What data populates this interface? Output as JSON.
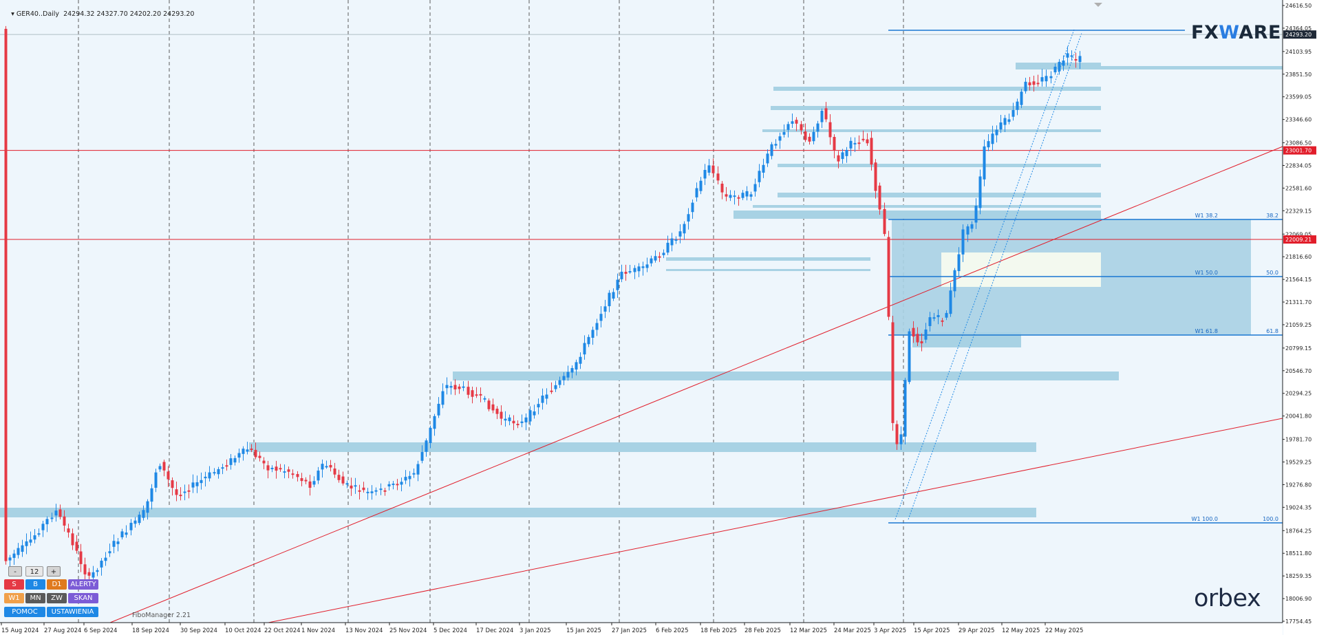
{
  "header": {
    "symbol": "GER40..Daily",
    "ohlc": "24294.32 24327.70 24202.20 24293.20"
  },
  "y_axis": {
    "ticks": [
      "24616.50",
      "24364.05",
      "24103.95",
      "23851.50",
      "23599.05",
      "23346.60",
      "23086.50",
      "22834.05",
      "22581.60",
      "22329.15",
      "22069.05",
      "21816.60",
      "21564.15",
      "21311.70",
      "21059.25",
      "20799.15",
      "20546.70",
      "20294.25",
      "20041.80",
      "19781.70",
      "19529.25",
      "19276.80",
      "19024.35",
      "18764.25",
      "18511.80",
      "18259.35",
      "18006.90",
      "17754.45"
    ],
    "price_labels": [
      {
        "value": "24293.20",
        "color": "#1f2937"
      },
      {
        "value": "23001.70",
        "color": "#e11d2a"
      },
      {
        "value": "22009.21",
        "color": "#e11d2a"
      }
    ]
  },
  "x_axis": {
    "ticks": [
      "15 Aug 2024",
      "27 Aug 2024",
      "6 Sep 2024",
      "18 Sep 2024",
      "30 Sep 2024",
      "10 Oct 2024",
      "22 Oct 2024",
      "1 Nov 2024",
      "13 Nov 2024",
      "25 Nov 2024",
      "5 Dec 2024",
      "17 Dec 2024",
      "3 Jan 2025",
      "15 Jan 2025",
      "27 Jan 2025",
      "6 Feb 2025",
      "18 Feb 2025",
      "28 Feb 2025",
      "12 Mar 2025",
      "24 Mar 2025",
      "3 Apr 2025",
      "15 Apr 2025",
      "29 Apr 2025",
      "12 May 2025",
      "22 May 2025"
    ]
  },
  "fibo_levels": [
    {
      "left": "W1 38.2",
      "right": "38.2"
    },
    {
      "left": "W1 50.0",
      "right": "50.0"
    },
    {
      "left": "W1 61.8",
      "right": "61.8"
    },
    {
      "left": "W1 100.0",
      "right": "100.0"
    }
  ],
  "controls": {
    "minus": "-",
    "number": "12",
    "plus": "+",
    "btn_s": "S",
    "btn_b": "B",
    "btn_d1": "D1",
    "btn_alerty": "ALERTY",
    "btn_w1": "W1",
    "btn_mn": "MN",
    "btn_zw": "ZW",
    "btn_skan": "SKAN",
    "btn_pomoc": "POMOC",
    "btn_ustawienia": "USTAWIENIA"
  },
  "fibo_manager": "FiboManager 2.21",
  "logos": {
    "fxware_a": "FX",
    "fxware_b": "W",
    "fxware_c": "ARE",
    "orbex": "orbex"
  },
  "colors": {
    "bull": "#1e88e5",
    "bear": "#e53945",
    "zone": "#a8d2e4",
    "trend": "#e11d2a",
    "fibo": "#1976d2"
  },
  "chart_data": {
    "type": "candlestick",
    "symbol": "GER40",
    "timeframe": "Daily",
    "ylim": [
      17754.45,
      24616.5
    ],
    "last_price": 24293.2,
    "horizontal_lines": [
      23001.7,
      22009.21
    ],
    "fibo_retracement": [
      {
        "level": "38.2",
        "price": 22080
      },
      {
        "level": "50.0",
        "price": 21595
      },
      {
        "level": "61.8",
        "price": 20935
      },
      {
        "level": "100.0",
        "price": 18858
      }
    ],
    "recent_high": 24370
  }
}
